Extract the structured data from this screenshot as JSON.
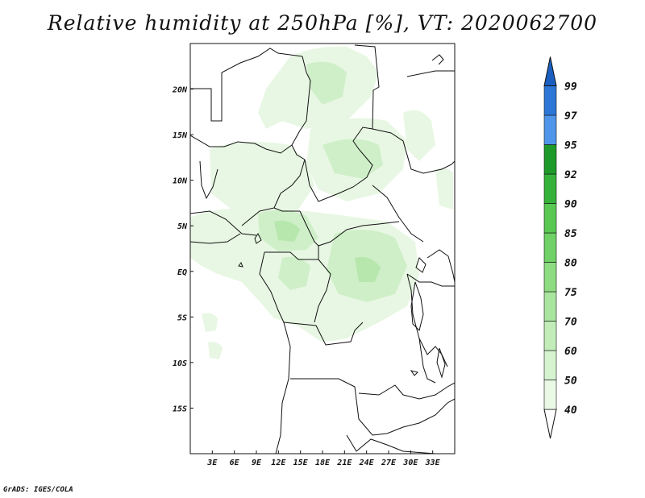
{
  "title": "Relative humidity at 250hPa [%], VT: 2020062700",
  "credit": "GrADS: IGES/COLA",
  "map": {
    "lon_range": [
      0,
      36
    ],
    "lat_range": [
      -20,
      25
    ],
    "x_ticks": [
      {
        "value": 3,
        "label": "3E"
      },
      {
        "value": 6,
        "label": "6E"
      },
      {
        "value": 9,
        "label": "9E"
      },
      {
        "value": 12,
        "label": "12E"
      },
      {
        "value": 15,
        "label": "15E"
      },
      {
        "value": 18,
        "label": "18E"
      },
      {
        "value": 21,
        "label": "21E"
      },
      {
        "value": 24,
        "label": "24E"
      },
      {
        "value": 27,
        "label": "27E"
      },
      {
        "value": 30,
        "label": "30E"
      },
      {
        "value": 33,
        "label": "33E"
      }
    ],
    "y_ticks": [
      {
        "value": 20,
        "label": "20N"
      },
      {
        "value": 15,
        "label": "15N"
      },
      {
        "value": 10,
        "label": "10N"
      },
      {
        "value": 5,
        "label": "5N"
      },
      {
        "value": 0,
        "label": "EQ"
      },
      {
        "value": -5,
        "label": "5S"
      },
      {
        "value": -10,
        "label": "10S"
      },
      {
        "value": -15,
        "label": "15S"
      }
    ]
  },
  "colorbar": {
    "levels": [
      "40",
      "50",
      "60",
      "70",
      "75",
      "80",
      "85",
      "90",
      "92",
      "95",
      "97",
      "99"
    ],
    "colors": [
      "#eaf8e6",
      "#d6f3d0",
      "#c2edb9",
      "#a9e59e",
      "#8ddc82",
      "#6fd166",
      "#58c852",
      "#36b23a",
      "#1e9a2a",
      "#4f96ea",
      "#2c76d8",
      "#1a5fc0"
    ]
  },
  "colors": {
    "humidity_light": "#e8f7e3",
    "humidity_medium": "#cfefc8",
    "humidity_strong": "#b7e7ad",
    "border": "#111111"
  }
}
